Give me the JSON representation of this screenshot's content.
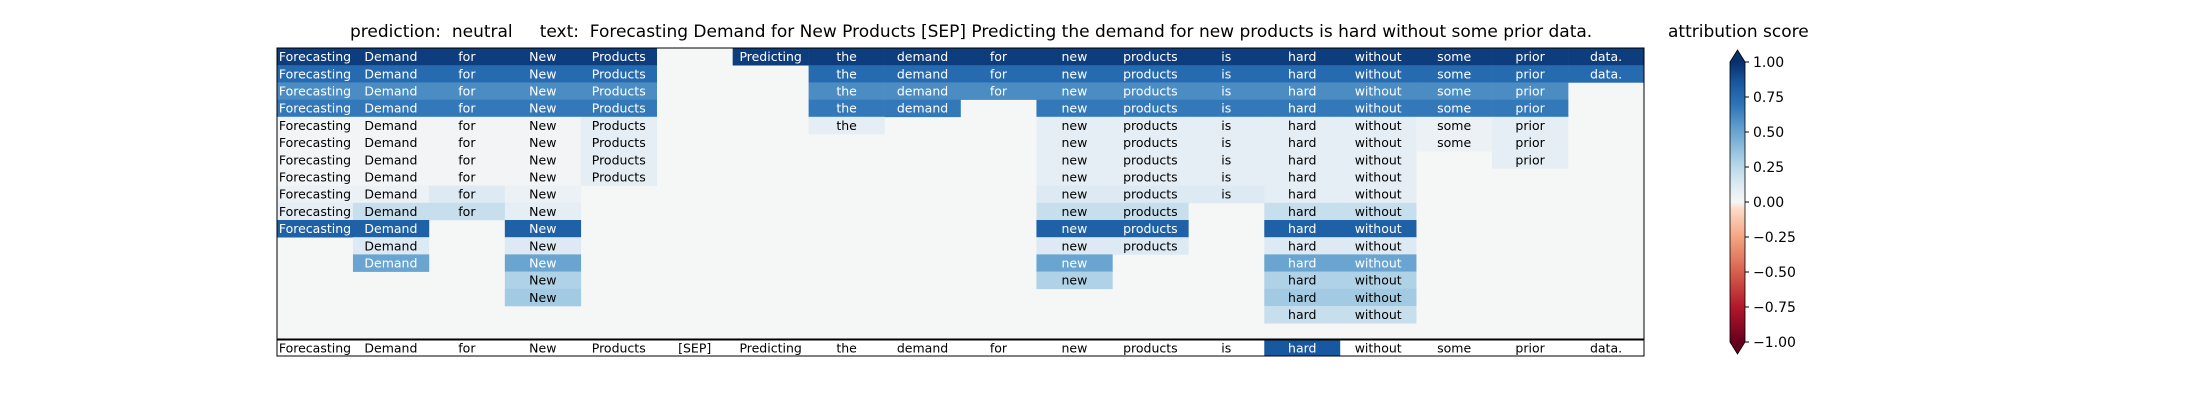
{
  "header": {
    "prediction_label": "prediction:",
    "prediction_value": "neutral",
    "text_label": "text:",
    "text_value": "Forecasting Demand for New Products [SEP] Predicting the demand for new products is hard without some prior data."
  },
  "colorbar": {
    "title": "attribution score",
    "ticks": [
      1.0,
      0.75,
      0.5,
      0.25,
      0.0,
      -0.25,
      -0.5,
      -0.75,
      -1.0
    ],
    "tick_labels": [
      "1.00",
      "0.75",
      "0.50",
      "0.25",
      "0.00",
      "−0.25",
      "−0.50",
      "−0.75",
      "−1.00"
    ],
    "range": [
      -1,
      1
    ],
    "colormap": "RdBu"
  },
  "chart_data": {
    "type": "heatmap",
    "tokens": [
      "Forecasting",
      "Demand",
      "for",
      "New",
      "Products",
      "[SEP]",
      "Predicting",
      "the",
      "demand",
      "for",
      "new",
      "products",
      "is",
      "hard",
      "without",
      "some",
      "prior",
      "data."
    ],
    "rows": [
      [
        0.95,
        0.95,
        0.95,
        0.95,
        0.95,
        null,
        0.95,
        0.95,
        0.95,
        0.95,
        0.95,
        0.95,
        0.95,
        0.95,
        0.95,
        0.95,
        0.95,
        0.95
      ],
      [
        0.75,
        0.75,
        0.75,
        0.75,
        0.75,
        null,
        null,
        0.75,
        0.75,
        0.75,
        0.75,
        0.75,
        0.75,
        0.75,
        0.75,
        0.75,
        0.75,
        0.75
      ],
      [
        0.6,
        0.6,
        0.6,
        0.6,
        0.6,
        null,
        null,
        0.6,
        0.6,
        0.6,
        0.6,
        0.6,
        0.6,
        0.6,
        0.6,
        0.6,
        0.6,
        null
      ],
      [
        0.68,
        0.68,
        0.68,
        0.68,
        0.68,
        null,
        null,
        0.68,
        0.68,
        null,
        0.68,
        0.68,
        0.68,
        0.68,
        0.68,
        0.68,
        0.68,
        null
      ],
      [
        0.02,
        0.02,
        0.02,
        0.02,
        0.08,
        null,
        null,
        0.08,
        null,
        null,
        0.08,
        0.08,
        0.08,
        0.08,
        0.08,
        0.05,
        0.08,
        null
      ],
      [
        0.02,
        0.02,
        0.02,
        0.02,
        0.08,
        null,
        null,
        null,
        null,
        null,
        0.08,
        0.08,
        0.08,
        0.08,
        0.08,
        0.05,
        0.08,
        null
      ],
      [
        0.02,
        0.02,
        0.02,
        0.02,
        0.08,
        null,
        null,
        null,
        null,
        null,
        0.08,
        0.08,
        0.08,
        0.08,
        0.08,
        null,
        0.08,
        null
      ],
      [
        0.02,
        0.02,
        0.02,
        0.02,
        0.08,
        null,
        null,
        null,
        null,
        null,
        0.08,
        0.08,
        0.08,
        0.08,
        0.08,
        null,
        null,
        null
      ],
      [
        0.05,
        0.05,
        0.12,
        0.05,
        null,
        null,
        null,
        null,
        null,
        null,
        0.12,
        0.12,
        0.12,
        0.08,
        0.08,
        null,
        null,
        null
      ],
      [
        0.08,
        0.2,
        0.2,
        0.08,
        null,
        null,
        null,
        null,
        null,
        null,
        0.2,
        0.2,
        null,
        0.2,
        0.2,
        null,
        null,
        null
      ],
      [
        0.8,
        0.8,
        null,
        0.8,
        null,
        null,
        null,
        null,
        null,
        null,
        0.8,
        0.8,
        null,
        0.8,
        0.8,
        null,
        null,
        null
      ],
      [
        null,
        0.12,
        null,
        0.12,
        null,
        null,
        null,
        null,
        null,
        null,
        0.12,
        0.12,
        null,
        0.12,
        0.12,
        null,
        null,
        null
      ],
      [
        null,
        0.5,
        null,
        0.5,
        null,
        null,
        null,
        null,
        null,
        null,
        0.5,
        null,
        null,
        0.5,
        0.5,
        null,
        null,
        null
      ],
      [
        null,
        null,
        null,
        0.28,
        null,
        null,
        null,
        null,
        null,
        null,
        0.28,
        null,
        null,
        0.28,
        0.28,
        null,
        null,
        null
      ],
      [
        null,
        null,
        null,
        0.32,
        null,
        null,
        null,
        null,
        null,
        null,
        null,
        null,
        null,
        0.32,
        0.32,
        null,
        null,
        null
      ],
      [
        null,
        null,
        null,
        null,
        null,
        null,
        null,
        null,
        null,
        null,
        null,
        null,
        null,
        0.2,
        0.2,
        null,
        null,
        null
      ]
    ],
    "bottom_row": {
      "tokens": [
        "Forecasting",
        "Demand",
        "for",
        "New",
        "Products",
        "[SEP]",
        "Predicting",
        "the",
        "demand",
        "for",
        "new",
        "products",
        "is",
        "hard",
        "without",
        "some",
        "prior",
        "data."
      ],
      "highlighted_index": 13,
      "highlight_value": 0.85
    },
    "value_range": [
      -1,
      1
    ],
    "colorbar_label": "attribution score"
  }
}
